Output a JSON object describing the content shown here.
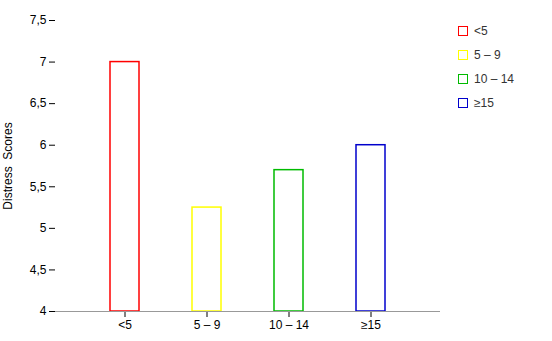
{
  "chart_data": {
    "type": "bar",
    "categories": [
      "<5",
      "5 – 9",
      "10 – 14",
      "≥15"
    ],
    "values": [
      7.0,
      5.25,
      5.7,
      6.0
    ],
    "colors": [
      "#ff0000",
      "#ffff00",
      "#00bb00",
      "#0000cc"
    ],
    "ylabel": "Distress  Scores",
    "ylim": [
      4,
      7.5
    ],
    "yticks": [
      4,
      {
        "value": 4.5,
        "label": "4,5"
      },
      5,
      {
        "value": 5.5,
        "label": "5,5"
      },
      6,
      {
        "value": 6.5,
        "label": "6,5"
      },
      7,
      {
        "value": 7.5,
        "label": "7,5"
      }
    ],
    "grid": false,
    "legend": "right"
  }
}
